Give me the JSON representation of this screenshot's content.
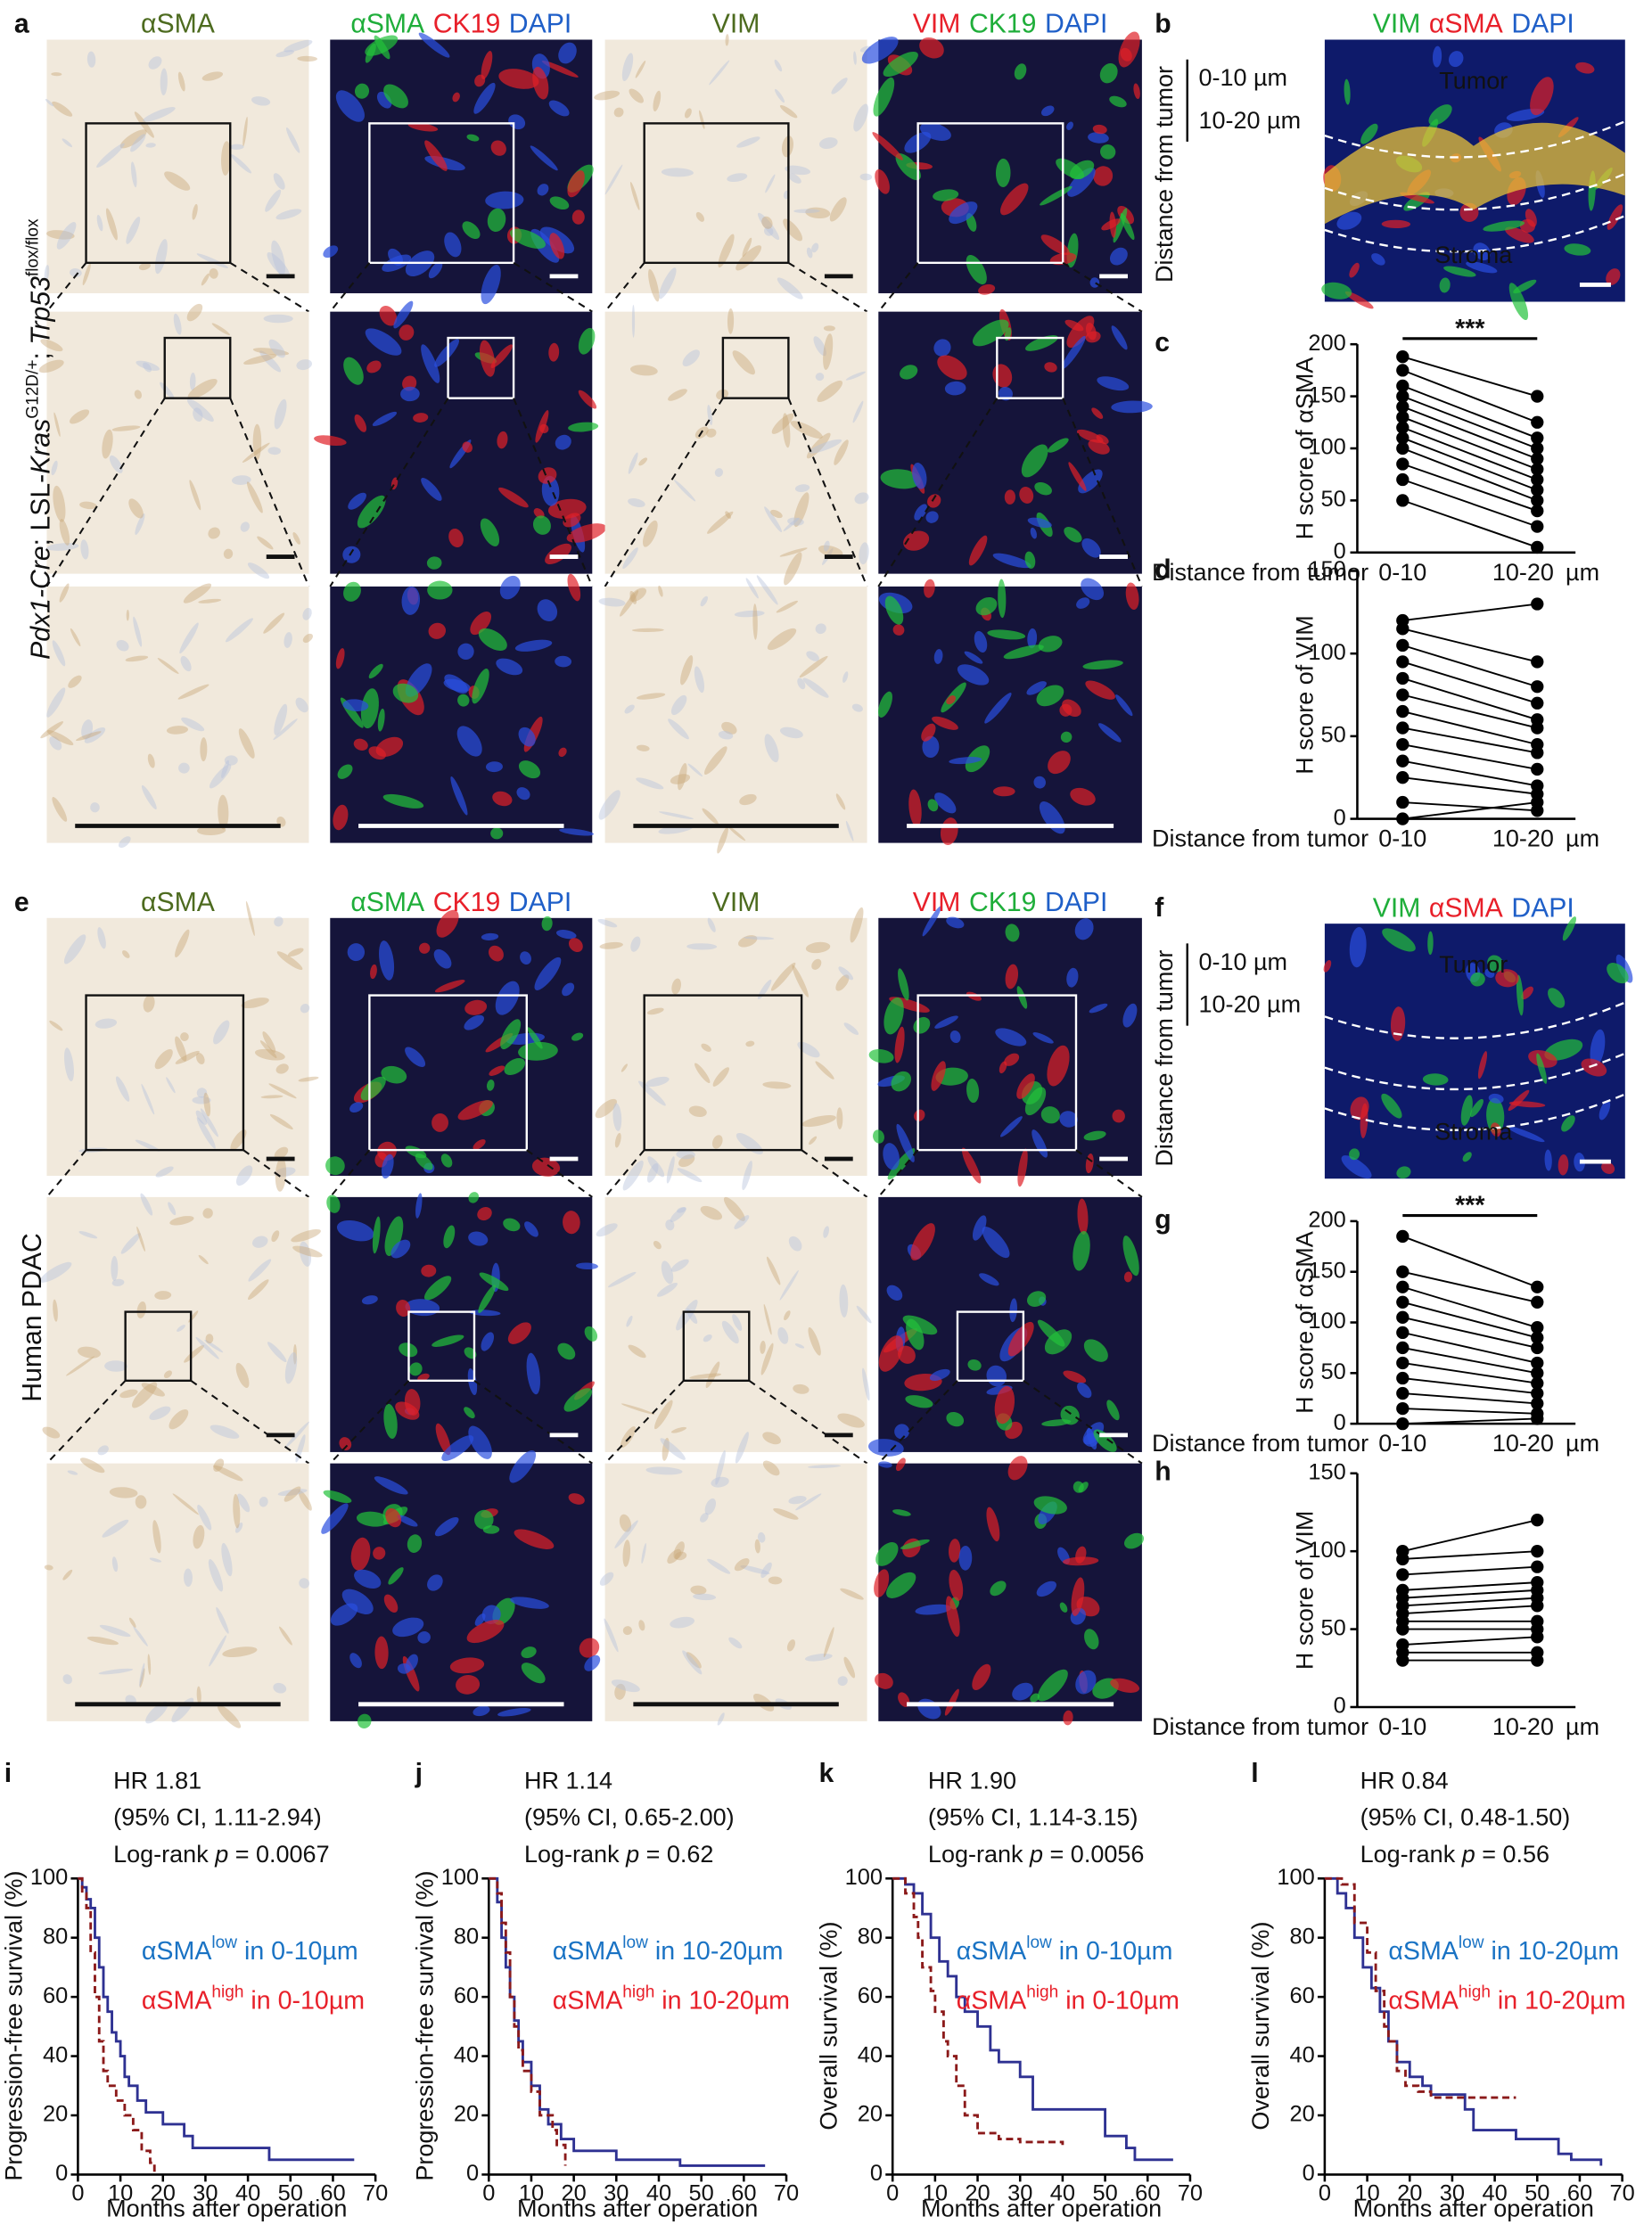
{
  "figure": {
    "a": {
      "label": "a",
      "headers": [
        [
          {
            "text": "αSMA",
            "color": "#4d6b1f"
          }
        ],
        [
          {
            "text": "αSMA",
            "color": "#1fae3a"
          },
          {
            "text": "CK19",
            "color": "#e8202a"
          },
          {
            "text": "DAPI",
            "color": "#1f5fc8"
          }
        ],
        [
          {
            "text": "VIM",
            "color": "#4d6b1f"
          }
        ],
        [
          {
            "text": "VIM",
            "color": "#e8202a"
          },
          {
            "text": "CK19",
            "color": "#1fae3a"
          },
          {
            "text": "DAPI",
            "color": "#1f5fc8"
          }
        ]
      ],
      "row_label": [
        {
          "text": "Pdx1-Cre",
          "style": "italic"
        },
        {
          "text": "; LSL-",
          "style": "normal"
        },
        {
          "text": "Kras",
          "style": "italic"
        },
        {
          "text": "G12D/+",
          "style": "sup"
        },
        {
          "text": "; ",
          "style": "normal"
        },
        {
          "text": "Trp53",
          "style": "italic"
        },
        {
          "text": "flox/flox",
          "style": "sup"
        }
      ]
    },
    "b": {
      "label": "b",
      "header": [
        {
          "text": "VIM",
          "color": "#1fae3a"
        },
        {
          "text": "αSMA",
          "color": "#e8202a"
        },
        {
          "text": "DAPI",
          "color": "#1f5fc8"
        }
      ],
      "bracket": [
        "0-10 µm",
        "10-20 µm"
      ],
      "axis_label": "Distance from tumor",
      "regions": [
        "Tumor",
        "Stroma"
      ]
    },
    "e": {
      "label": "e",
      "headers": [
        [
          {
            "text": "αSMA",
            "color": "#4d6b1f"
          }
        ],
        [
          {
            "text": "αSMA",
            "color": "#1fae3a"
          },
          {
            "text": "CK19",
            "color": "#e8202a"
          },
          {
            "text": "DAPI",
            "color": "#1f5fc8"
          }
        ],
        [
          {
            "text": "VIM",
            "color": "#4d6b1f"
          }
        ],
        [
          {
            "text": "VIM",
            "color": "#e8202a"
          },
          {
            "text": "CK19",
            "color": "#1fae3a"
          },
          {
            "text": "DAPI",
            "color": "#1f5fc8"
          }
        ]
      ],
      "row_label": [
        {
          "text": "Human PDAC",
          "style": "normal"
        }
      ]
    },
    "f": {
      "label": "f",
      "header": [
        {
          "text": "VIM",
          "color": "#1fae3a"
        },
        {
          "text": "αSMA",
          "color": "#e8202a"
        },
        {
          "text": "DAPI",
          "color": "#1f5fc8"
        }
      ],
      "bracket": [
        "0-10 µm",
        "10-20 µm"
      ],
      "axis_label": "Distance from tumor",
      "regions": [
        "Tumor",
        "Stroma"
      ]
    }
  },
  "chart_data": [
    {
      "type": "paired-dot",
      "label": "c",
      "ylabel": "H score of αSMA",
      "xlabel": "Distance from tumor",
      "categories": [
        "0-10",
        "10-20"
      ],
      "x_unit": "µm",
      "significance": "***",
      "ylim": [
        0,
        200
      ],
      "yticks": [
        0,
        50,
        100,
        150,
        200
      ],
      "left": [
        188,
        175,
        160,
        150,
        140,
        130,
        120,
        110,
        100,
        85,
        70,
        50
      ],
      "right": [
        150,
        125,
        110,
        100,
        90,
        80,
        70,
        60,
        50,
        40,
        25,
        5
      ]
    },
    {
      "type": "paired-dot",
      "label": "d",
      "ylabel": "H score of VIM",
      "xlabel": "Distance from tumor",
      "categories": [
        "0-10",
        "10-20"
      ],
      "x_unit": "µm",
      "ylim": [
        0,
        150
      ],
      "yticks": [
        0,
        50,
        100,
        150
      ],
      "left": [
        120,
        115,
        105,
        95,
        85,
        75,
        65,
        55,
        45,
        35,
        25,
        10,
        0
      ],
      "right": [
        130,
        95,
        80,
        70,
        60,
        55,
        45,
        40,
        30,
        20,
        15,
        5,
        10
      ]
    },
    {
      "type": "paired-dot",
      "label": "g",
      "ylabel": "H score of αSMA",
      "xlabel": "Distance from tumor",
      "categories": [
        "0-10",
        "10-20"
      ],
      "x_unit": "µm",
      "significance": "***",
      "ylim": [
        0,
        200
      ],
      "yticks": [
        0,
        50,
        100,
        150,
        200
      ],
      "left": [
        185,
        150,
        135,
        120,
        105,
        90,
        75,
        60,
        45,
        30,
        15,
        0
      ],
      "right": [
        135,
        120,
        95,
        85,
        75,
        60,
        50,
        40,
        30,
        20,
        10,
        5
      ]
    },
    {
      "type": "paired-dot",
      "label": "h",
      "ylabel": "H score of VIM",
      "xlabel": "Distance from tumor",
      "categories": [
        "0-10",
        "10-20"
      ],
      "x_unit": "µm",
      "ylim": [
        0,
        150
      ],
      "yticks": [
        0,
        50,
        100,
        150
      ],
      "left": [
        100,
        95,
        85,
        75,
        70,
        65,
        60,
        55,
        50,
        40,
        35,
        30
      ],
      "right": [
        120,
        100,
        90,
        80,
        75,
        70,
        65,
        55,
        50,
        45,
        35,
        30
      ]
    },
    {
      "type": "survival",
      "label": "i",
      "ylabel": "Progression-free survival (%)",
      "xlabel": "Months after operation",
      "hr": "HR 1.81",
      "ci": "(95% CI, 1.11-2.94)",
      "logrank": [
        "Log-rank ",
        "p",
        " = 0.0067"
      ],
      "xlim": [
        0,
        70
      ],
      "xticks": [
        0,
        10,
        20,
        30,
        40,
        50,
        60,
        70
      ],
      "ylim": [
        0,
        100
      ],
      "yticks": [
        0,
        20,
        40,
        60,
        80,
        100
      ],
      "series": [
        {
          "legend": [
            "αSMA",
            "low",
            " in 0-10µm"
          ],
          "color": "#2e3192",
          "text_color": "#1a73c4",
          "dashed": false,
          "x": [
            0,
            1,
            2,
            3,
            4,
            5,
            6,
            7,
            8,
            9,
            10,
            11,
            12,
            14,
            16,
            20,
            25,
            27,
            45,
            65
          ],
          "y": [
            100,
            97,
            93,
            90,
            80,
            70,
            60,
            55,
            48,
            45,
            40,
            33,
            30,
            25,
            21,
            17,
            13,
            9,
            5,
            5
          ]
        },
        {
          "legend": [
            "αSMA",
            "high",
            " in 0-10µm"
          ],
          "color": "#8b1a1a",
          "text_color": "#e8202a",
          "dashed": true,
          "x": [
            0,
            1,
            2,
            3,
            4,
            5,
            6,
            7,
            9,
            11,
            13,
            15,
            17,
            18
          ],
          "y": [
            100,
            95,
            90,
            75,
            60,
            45,
            35,
            30,
            25,
            20,
            15,
            8,
            4,
            0
          ]
        }
      ]
    },
    {
      "type": "survival",
      "label": "j",
      "ylabel": "Progression-free survival (%)",
      "xlabel": "Months after operation",
      "hr": "HR 1.14",
      "ci": "(95% CI, 0.65-2.00)",
      "logrank": [
        "Log-rank ",
        "p",
        " = 0.62"
      ],
      "xlim": [
        0,
        70
      ],
      "xticks": [
        0,
        10,
        20,
        30,
        40,
        50,
        60,
        70
      ],
      "ylim": [
        0,
        100
      ],
      "yticks": [
        0,
        20,
        40,
        60,
        80,
        100
      ],
      "series": [
        {
          "legend": [
            "αSMA",
            "low",
            " in 10-20µm"
          ],
          "color": "#2e3192",
          "text_color": "#1a73c4",
          "dashed": false,
          "x": [
            0,
            2,
            3,
            4,
            5,
            6,
            7,
            8,
            10,
            12,
            14,
            17,
            20,
            30,
            45,
            65
          ],
          "y": [
            100,
            92,
            80,
            70,
            60,
            52,
            45,
            38,
            30,
            22,
            17,
            12,
            8,
            5,
            3,
            3
          ]
        },
        {
          "legend": [
            "αSMA",
            "high",
            " in 10-20µm"
          ],
          "color": "#8b1a1a",
          "text_color": "#e8202a",
          "dashed": true,
          "x": [
            0,
            2,
            3,
            4,
            5,
            6,
            7,
            8,
            10,
            12,
            15,
            16,
            18
          ],
          "y": [
            100,
            95,
            85,
            75,
            60,
            50,
            42,
            35,
            28,
            20,
            15,
            10,
            3
          ]
        }
      ]
    },
    {
      "type": "survival",
      "label": "k",
      "ylabel": "Overall survival (%)",
      "xlabel": "Months after operation",
      "hr": "HR 1.90",
      "ci": "(95% CI, 1.14-3.15)",
      "logrank": [
        "Log-rank ",
        "p",
        " = 0.0056"
      ],
      "xlim": [
        0,
        70
      ],
      "xticks": [
        0,
        10,
        20,
        30,
        40,
        50,
        60,
        70
      ],
      "ylim": [
        0,
        100
      ],
      "yticks": [
        0,
        20,
        40,
        60,
        80,
        100
      ],
      "series": [
        {
          "legend": [
            "αSMA",
            "low",
            " in 0-10µm"
          ],
          "color": "#2e3192",
          "text_color": "#1a73c4",
          "dashed": false,
          "x": [
            0,
            3,
            5,
            7,
            9,
            11,
            13,
            15,
            17,
            20,
            23,
            25,
            30,
            33,
            50,
            55,
            57,
            66
          ],
          "y": [
            100,
            98,
            95,
            88,
            80,
            72,
            67,
            60,
            55,
            50,
            42,
            38,
            33,
            22,
            13,
            9,
            5,
            5
          ]
        },
        {
          "legend": [
            "αSMA",
            "high",
            " in 0-10µm"
          ],
          "color": "#8b1a1a",
          "text_color": "#e8202a",
          "dashed": true,
          "x": [
            0,
            3,
            5,
            6,
            7,
            9,
            10,
            12,
            13,
            15,
            17,
            20,
            25,
            30,
            40
          ],
          "y": [
            100,
            95,
            87,
            80,
            70,
            62,
            55,
            45,
            40,
            30,
            20,
            14,
            12,
            11,
            10
          ]
        }
      ]
    },
    {
      "type": "survival",
      "label": "l",
      "ylabel": "Overall survival (%)",
      "xlabel": "Months after operation",
      "hr": "HR 0.84",
      "ci": "(95% CI, 0.48-1.50)",
      "logrank": [
        "Log-rank ",
        "p",
        " = 0.56"
      ],
      "xlim": [
        0,
        70
      ],
      "xticks": [
        0,
        10,
        20,
        30,
        40,
        50,
        60,
        70
      ],
      "ylim": [
        0,
        100
      ],
      "yticks": [
        0,
        20,
        40,
        60,
        80,
        100
      ],
      "series": [
        {
          "legend": [
            "αSMA",
            "low",
            " in 10-20µm"
          ],
          "color": "#2e3192",
          "text_color": "#1a73c4",
          "dashed": false,
          "x": [
            0,
            3,
            5,
            7,
            9,
            11,
            13,
            15,
            17,
            20,
            23,
            25,
            30,
            33,
            35,
            45,
            55,
            58,
            65
          ],
          "y": [
            100,
            95,
            90,
            80,
            70,
            63,
            55,
            45,
            38,
            33,
            30,
            27,
            27,
            22,
            15,
            12,
            7,
            5,
            3
          ]
        },
        {
          "legend": [
            "αSMA",
            "high",
            " in 10-20µm"
          ],
          "color": "#8b1a1a",
          "text_color": "#e8202a",
          "dashed": true,
          "x": [
            0,
            4,
            7,
            10,
            12,
            14,
            15,
            17,
            19,
            22,
            25,
            45
          ],
          "y": [
            100,
            98,
            85,
            75,
            62,
            50,
            45,
            35,
            30,
            28,
            26,
            26
          ]
        }
      ]
    }
  ]
}
